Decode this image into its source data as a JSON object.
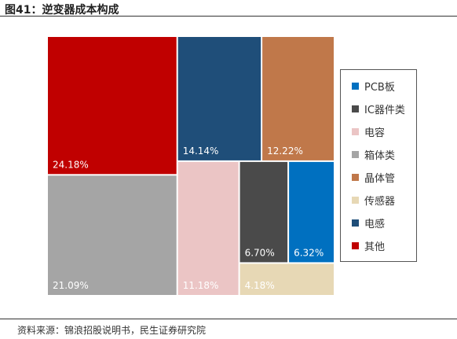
{
  "title": "图41：逆变器成本构成",
  "source": "资料来源：锦浪招股说明书，民生证券研究院",
  "chart_data": {
    "type": "treemap",
    "items": [
      {
        "name": "其他",
        "value": 24.18,
        "label": "24.18%",
        "color": "#C00000"
      },
      {
        "name": "箱体类",
        "value": 21.09,
        "label": "21.09%",
        "color": "#A5A5A5"
      },
      {
        "name": "电感",
        "value": 14.14,
        "label": "14.14%",
        "color": "#1F4E79"
      },
      {
        "name": "晶体管",
        "value": 12.22,
        "label": "12.22%",
        "color": "#C0784A"
      },
      {
        "name": "电容",
        "value": 11.18,
        "label": "11.18%",
        "color": "#EBC5C5"
      },
      {
        "name": "IC器件类",
        "value": 6.7,
        "label": "6.70%",
        "color": "#4A4A4A"
      },
      {
        "name": "PCB板",
        "value": 6.32,
        "label": "6.32%",
        "color": "#0070C0"
      },
      {
        "name": "传感器",
        "value": 4.18,
        "label": "4.18%",
        "color": "#E7D8B5"
      }
    ],
    "legend": [
      "PCB板",
      "IC器件类",
      "电容",
      "箱体类",
      "晶体管",
      "传感器",
      "电感",
      "其他"
    ],
    "legend_position": "right"
  }
}
